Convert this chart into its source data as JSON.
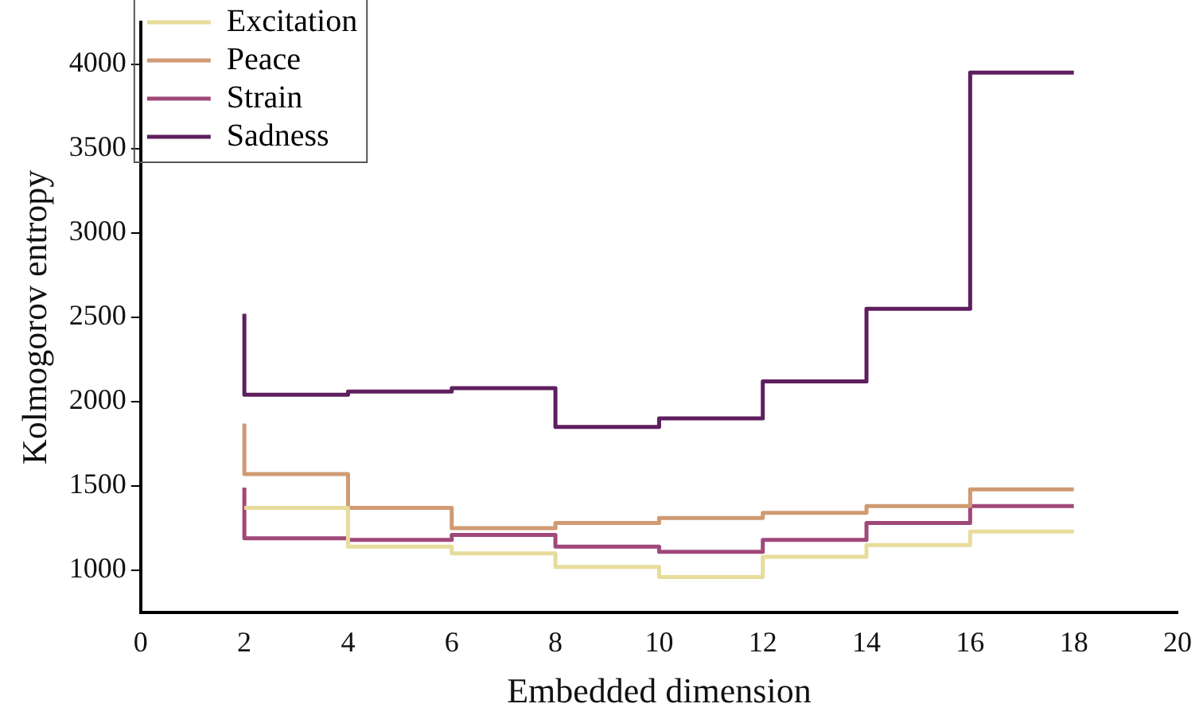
{
  "chart_data": {
    "type": "step",
    "xlabel": "Embedded dimension",
    "ylabel": "Kolmogorov entropy",
    "x": [
      2,
      4,
      6,
      8,
      10,
      12,
      14,
      16,
      18
    ],
    "series": [
      {
        "name": "Excitation",
        "color": "#e8dc9c",
        "values": [
          1370,
          1370,
          1140,
          1100,
          1020,
          960,
          1080,
          1150,
          1230
        ]
      },
      {
        "name": "Peace",
        "color": "#d09a72",
        "values": [
          1870,
          1570,
          1370,
          1250,
          1280,
          1310,
          1340,
          1380,
          1480
        ]
      },
      {
        "name": "Strain",
        "color": "#a0487a",
        "values": [
          1490,
          1190,
          1180,
          1210,
          1140,
          1110,
          1180,
          1280,
          1380
        ]
      },
      {
        "name": "Sadness",
        "color": "#5e1f5e",
        "values": [
          2520,
          2040,
          2060,
          2080,
          1850,
          1900,
          2120,
          2550,
          3950
        ]
      }
    ],
    "xlim": [
      0,
      20
    ],
    "xticks": [
      0,
      2,
      4,
      6,
      8,
      10,
      12,
      14,
      16,
      18,
      20
    ],
    "ylim": [
      750,
      4250
    ],
    "yticks": [
      1000,
      1500,
      2000,
      2500,
      3000,
      3500,
      4000
    ],
    "grid": false,
    "legend": "top left",
    "line_style": "solid",
    "marker": "none"
  }
}
